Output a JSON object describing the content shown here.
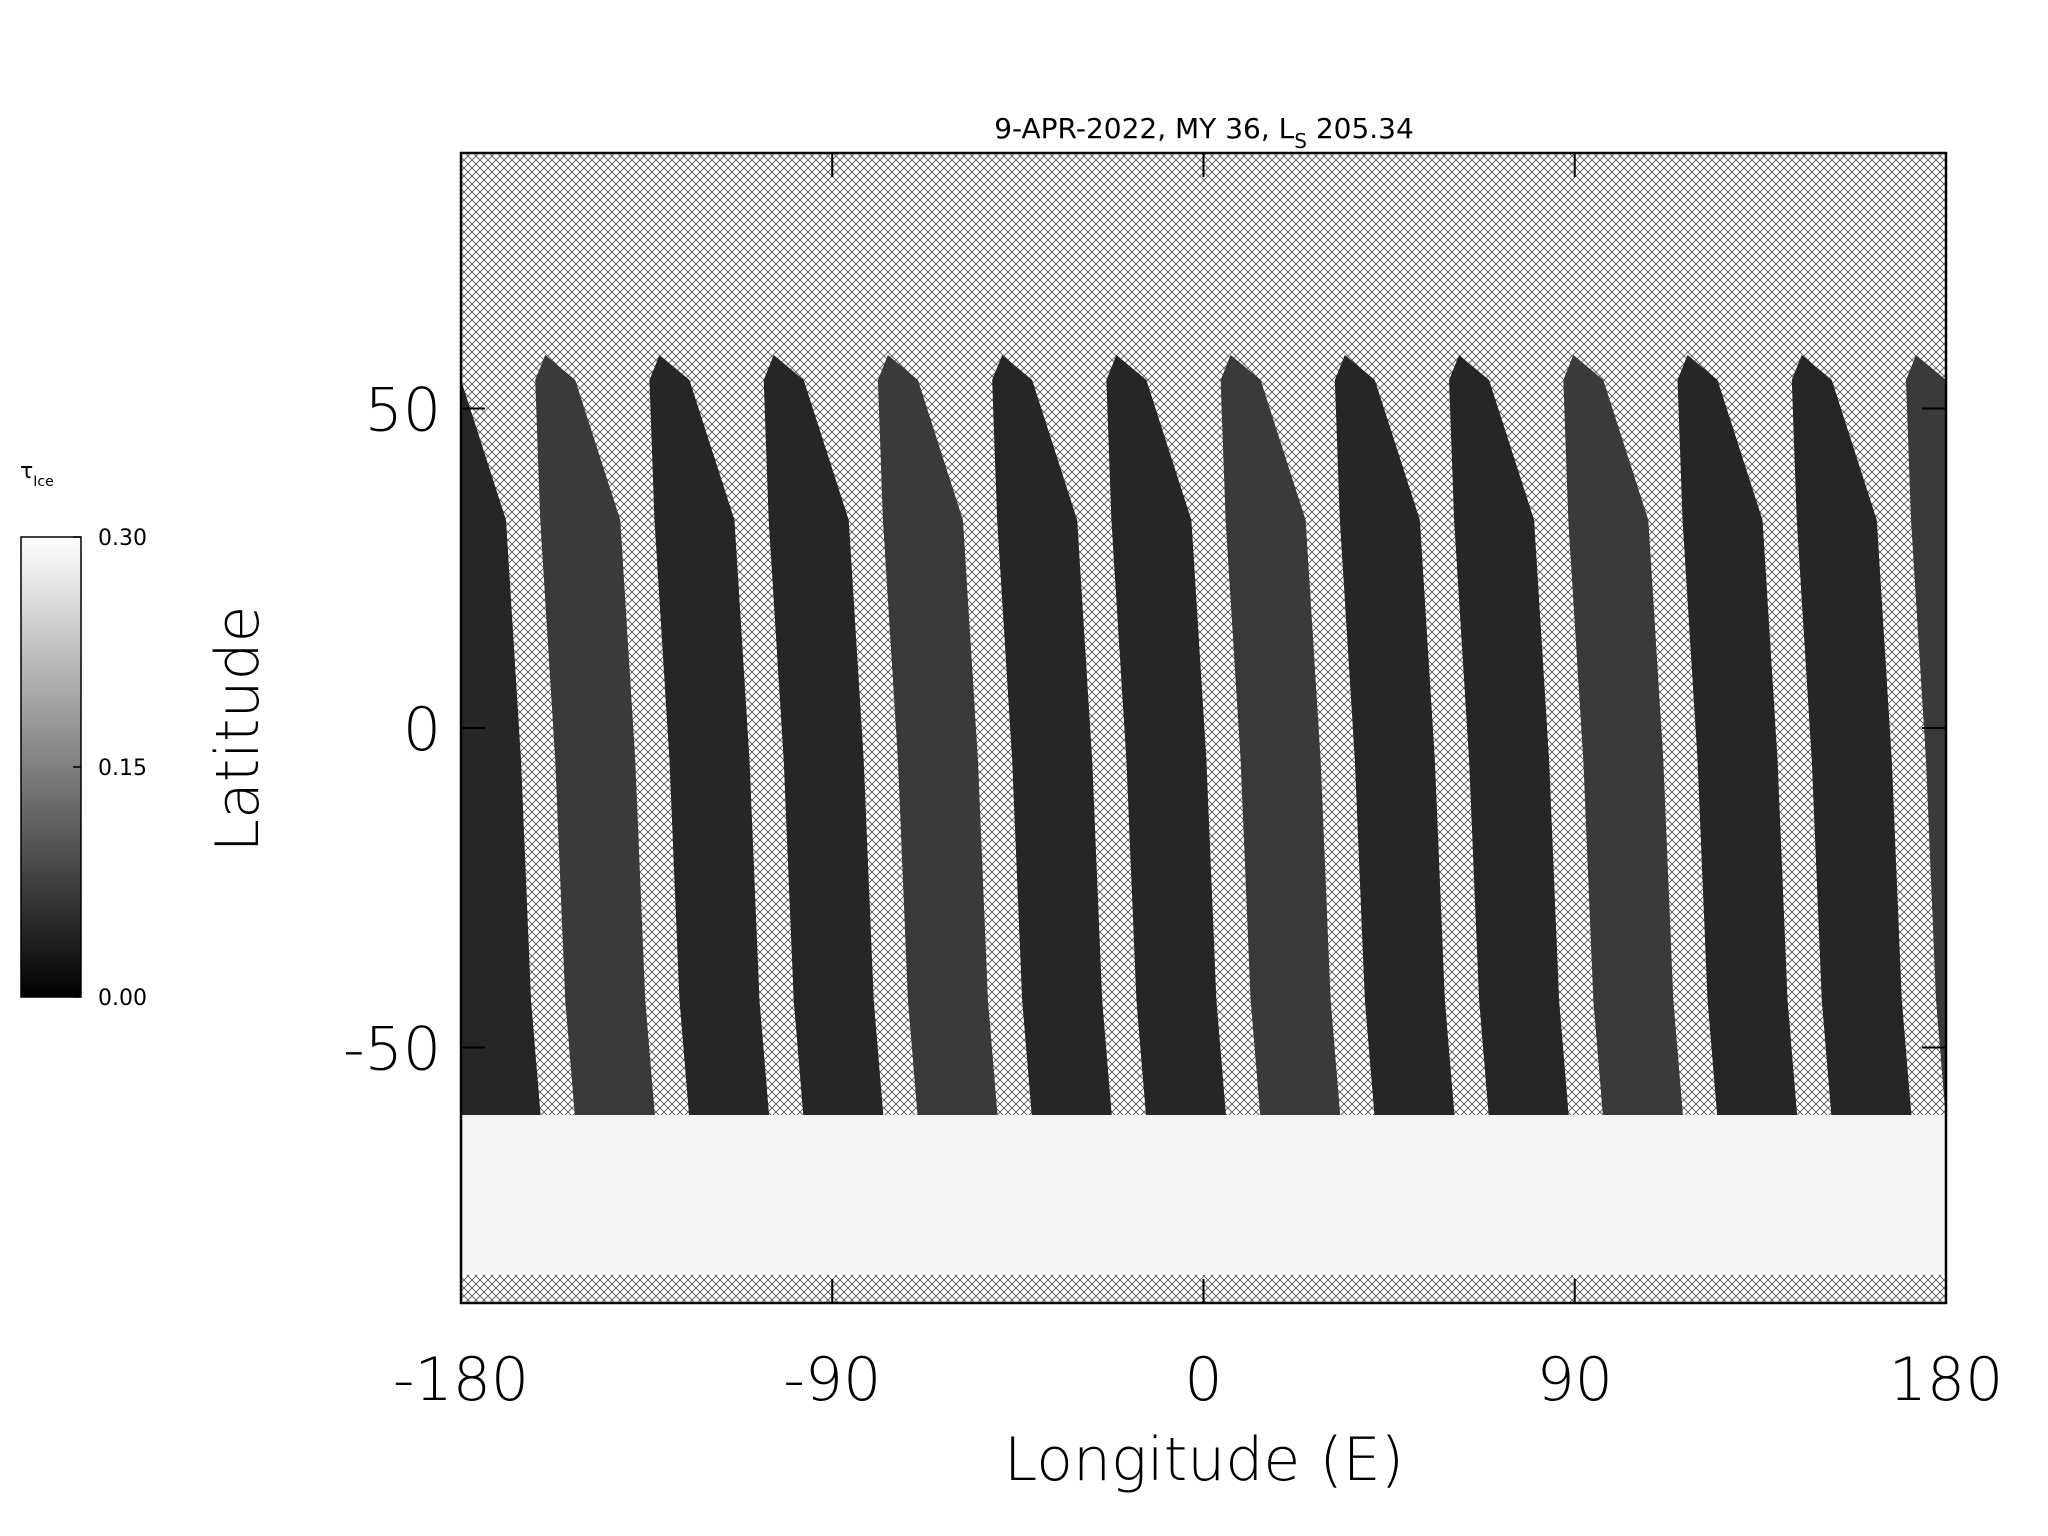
{
  "chart_data": {
    "type": "map",
    "title": {
      "text": "9-APR-2022, MY 36,  L",
      "subscript": "S",
      "suffix": " 205.34"
    },
    "xlabel": "Longitude (E)",
    "ylabel": "Latitude",
    "xlim": [
      -180,
      180
    ],
    "ylim": [
      -90,
      90
    ],
    "xticks": [
      -180,
      -90,
      0,
      90,
      180
    ],
    "yticks": [
      -50,
      0,
      50
    ],
    "colorbar": {
      "label": "τ",
      "label_subscript": "Ice",
      "lim": [
        0,
        0.3
      ],
      "ticks": [
        {
          "value": 0,
          "label": "0.00"
        },
        {
          "value": 0.15,
          "label": "0.15"
        },
        {
          "value": 0.3,
          "label": "0.30"
        }
      ]
    }
  }
}
